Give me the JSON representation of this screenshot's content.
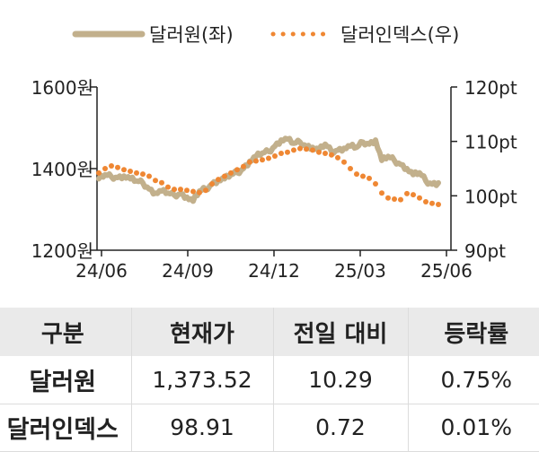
{
  "chart_data": {
    "type": "line",
    "x_ticks": [
      "24/06",
      "24/09",
      "24/12",
      "25/03",
      "25/06"
    ],
    "y_left": {
      "ticks": [
        "1600원",
        "1400원",
        "1200원"
      ],
      "range": [
        1200,
        1600
      ]
    },
    "y_right": {
      "ticks": [
        "120pt",
        "110pt",
        "100pt",
        "90pt"
      ],
      "range": [
        90,
        120
      ]
    },
    "series": [
      {
        "name": "달러원(좌)",
        "axis": "left",
        "style": "solid",
        "color": "#c2b08c",
        "x": [
          "2024-06-03",
          "2024-06-10",
          "2024-06-17",
          "2024-06-24",
          "2024-07-01",
          "2024-07-08",
          "2024-07-15",
          "2024-07-22",
          "2024-07-29",
          "2024-08-05",
          "2024-08-12",
          "2024-08-19",
          "2024-08-26",
          "2024-09-02",
          "2024-09-09",
          "2024-09-16",
          "2024-09-23",
          "2024-09-30",
          "2024-10-07",
          "2024-10-14",
          "2024-10-21",
          "2024-10-28",
          "2024-11-04",
          "2024-11-11",
          "2024-11-18",
          "2024-11-25",
          "2024-12-02",
          "2024-12-09",
          "2024-12-16",
          "2024-12-23",
          "2024-12-30",
          "2025-01-06",
          "2025-01-13",
          "2025-01-20",
          "2025-01-27",
          "2025-02-03",
          "2025-02-10",
          "2025-02-17",
          "2025-02-24",
          "2025-03-03",
          "2025-03-10",
          "2025-03-17",
          "2025-03-24",
          "2025-03-31",
          "2025-04-07",
          "2025-04-14",
          "2025-04-21",
          "2025-04-28",
          "2025-05-05",
          "2025-05-12",
          "2025-05-19",
          "2025-05-26",
          "2025-06-02",
          "2025-06-09",
          "2025-06-16"
        ],
        "y": [
          1375,
          1385,
          1380,
          1378,
          1382,
          1375,
          1370,
          1365,
          1350,
          1340,
          1345,
          1340,
          1335,
          1338,
          1330,
          1320,
          1345,
          1350,
          1362,
          1372,
          1375,
          1385,
          1390,
          1400,
          1418,
          1430,
          1438,
          1442,
          1455,
          1470,
          1472,
          1462,
          1465,
          1455,
          1452,
          1445,
          1460,
          1442,
          1445,
          1450,
          1455,
          1452,
          1465,
          1460,
          1470,
          1420,
          1430,
          1420,
          1410,
          1400,
          1385,
          1390,
          1370,
          1362,
          1365
        ]
      },
      {
        "name": "달러인덱스(우)",
        "axis": "right",
        "style": "dotted",
        "color": "#ef8733",
        "x": [
          "2024-06-03",
          "2024-06-10",
          "2024-06-17",
          "2024-06-24",
          "2024-07-01",
          "2024-07-08",
          "2024-07-15",
          "2024-07-22",
          "2024-07-29",
          "2024-08-05",
          "2024-08-12",
          "2024-08-19",
          "2024-08-26",
          "2024-09-02",
          "2024-09-09",
          "2024-09-16",
          "2024-09-23",
          "2024-09-30",
          "2024-10-07",
          "2024-10-14",
          "2024-10-21",
          "2024-10-28",
          "2024-11-04",
          "2024-11-11",
          "2024-11-18",
          "2024-11-25",
          "2024-12-02",
          "2024-12-09",
          "2024-12-16",
          "2024-12-23",
          "2024-12-30",
          "2025-01-06",
          "2025-01-13",
          "2025-01-20",
          "2025-01-27",
          "2025-02-03",
          "2025-02-10",
          "2025-02-17",
          "2025-02-24",
          "2025-03-03",
          "2025-03-10",
          "2025-03-17",
          "2025-03-24",
          "2025-03-31",
          "2025-04-07",
          "2025-04-14",
          "2025-04-21",
          "2025-04-28",
          "2025-05-05",
          "2025-05-12",
          "2025-05-19",
          "2025-05-26",
          "2025-06-02",
          "2025-06-09",
          "2025-06-16"
        ],
        "y": [
          104.2,
          105.0,
          105.5,
          105.2,
          104.8,
          104.5,
          104.2,
          104.0,
          103.6,
          102.8,
          102.4,
          101.6,
          101.2,
          101.2,
          101.0,
          100.8,
          100.6,
          101.0,
          102.2,
          103.0,
          103.6,
          104.2,
          104.8,
          105.4,
          106.2,
          106.4,
          106.6,
          106.9,
          107.3,
          107.8,
          108.0,
          108.4,
          108.7,
          108.6,
          108.4,
          108.0,
          107.8,
          107.5,
          107.0,
          106.2,
          105.0,
          104.0,
          103.6,
          103.2,
          102.2,
          100.5,
          99.6,
          99.4,
          99.3,
          100.4,
          100.2,
          99.6,
          98.9,
          98.6,
          98.4
        ]
      }
    ],
    "xlim": [
      "2024-06-01",
      "2025-06-30"
    ],
    "grid": false,
    "legend": "top"
  },
  "table": {
    "headers": [
      "구분",
      "현재가",
      "전일 대비",
      "등락률"
    ],
    "rows": [
      [
        "달러원",
        "1,373.52",
        "10.29",
        "0.75%"
      ],
      [
        "달러인덱스",
        "98.91",
        "0.72",
        "0.01%"
      ]
    ]
  }
}
